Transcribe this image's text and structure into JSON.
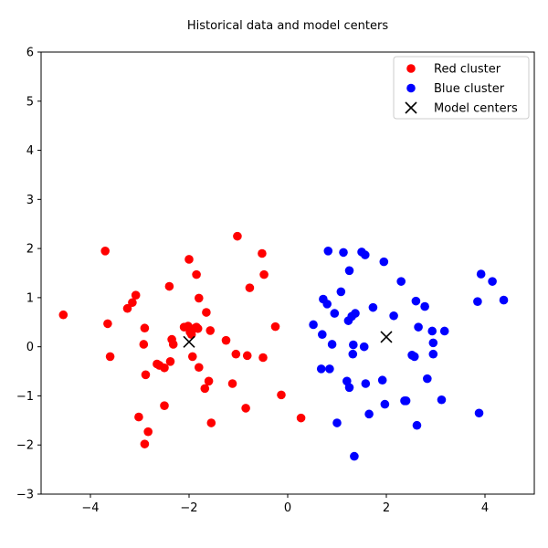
{
  "chart_data": {
    "type": "scatter",
    "title": "Historical data and model centers",
    "xlabel": "",
    "ylabel": "",
    "xlim": [
      -5,
      5
    ],
    "ylim": [
      -3,
      6
    ],
    "xticks": [
      -4,
      -2,
      0,
      2,
      4
    ],
    "yticks": [
      -3,
      -2,
      -1,
      0,
      1,
      2,
      3,
      4,
      5,
      6
    ],
    "xtick_labels": [
      "−4",
      "−2",
      "0",
      "2",
      "4"
    ],
    "ytick_labels": [
      "−3",
      "−2",
      "−1",
      "0",
      "1",
      "2",
      "3",
      "4",
      "5",
      "6"
    ],
    "grid": false,
    "legend_position": "top-right",
    "series": [
      {
        "name": "Red cluster",
        "color": "#ff0000",
        "marker": "circle",
        "points": [
          [
            -4.55,
            0.65
          ],
          [
            -3.7,
            1.95
          ],
          [
            -3.65,
            0.47
          ],
          [
            -3.6,
            -0.2
          ],
          [
            -3.25,
            0.78
          ],
          [
            -3.15,
            0.9
          ],
          [
            -3.08,
            1.05
          ],
          [
            -3.02,
            -1.43
          ],
          [
            -2.92,
            0.05
          ],
          [
            -2.9,
            0.38
          ],
          [
            -2.88,
            -0.57
          ],
          [
            -2.9,
            -1.98
          ],
          [
            -2.83,
            -1.73
          ],
          [
            -2.65,
            -0.35
          ],
          [
            -2.6,
            -0.38
          ],
          [
            -2.5,
            -0.43
          ],
          [
            -2.5,
            -1.2
          ],
          [
            -2.4,
            1.23
          ],
          [
            -2.38,
            -0.3
          ],
          [
            -2.35,
            0.15
          ],
          [
            -2.32,
            0.05
          ],
          [
            -2.1,
            0.4
          ],
          [
            -2.02,
            0.42
          ],
          [
            -2.0,
            1.78
          ],
          [
            -1.98,
            0.3
          ],
          [
            -1.95,
            0.25
          ],
          [
            -1.93,
            -0.2
          ],
          [
            -1.88,
            0.38
          ],
          [
            -1.85,
            0.4
          ],
          [
            -1.85,
            1.47
          ],
          [
            -1.82,
            0.37
          ],
          [
            -1.8,
            0.99
          ],
          [
            -1.8,
            -0.42
          ],
          [
            -1.68,
            -0.85
          ],
          [
            -1.65,
            0.7
          ],
          [
            -1.6,
            -0.7
          ],
          [
            -1.57,
            0.33
          ],
          [
            -1.55,
            -1.55
          ],
          [
            -1.25,
            0.13
          ],
          [
            -1.12,
            -0.75
          ],
          [
            -1.05,
            -0.15
          ],
          [
            -1.02,
            2.25
          ],
          [
            -0.85,
            -1.25
          ],
          [
            -0.82,
            -0.18
          ],
          [
            -0.77,
            1.2
          ],
          [
            -0.52,
            1.9
          ],
          [
            -0.5,
            -0.22
          ],
          [
            -0.48,
            1.47
          ],
          [
            -0.25,
            0.41
          ],
          [
            -0.13,
            -0.98
          ],
          [
            0.27,
            -1.45
          ]
        ]
      },
      {
        "name": "Blue cluster",
        "color": "#0000ff",
        "marker": "circle",
        "points": [
          [
            0.52,
            0.45
          ],
          [
            0.68,
            -0.45
          ],
          [
            0.7,
            0.25
          ],
          [
            0.72,
            0.97
          ],
          [
            0.8,
            0.87
          ],
          [
            0.82,
            1.95
          ],
          [
            0.85,
            -0.45
          ],
          [
            0.9,
            0.05
          ],
          [
            0.95,
            0.68
          ],
          [
            1.0,
            -1.55
          ],
          [
            1.08,
            1.12
          ],
          [
            1.13,
            1.92
          ],
          [
            1.2,
            -0.7
          ],
          [
            1.23,
            0.53
          ],
          [
            1.25,
            -0.83
          ],
          [
            1.25,
            1.55
          ],
          [
            1.3,
            0.62
          ],
          [
            1.32,
            -0.15
          ],
          [
            1.33,
            0.04
          ],
          [
            1.35,
            -2.23
          ],
          [
            1.37,
            0.68
          ],
          [
            1.5,
            1.93
          ],
          [
            1.55,
            0.0
          ],
          [
            1.57,
            1.87
          ],
          [
            1.58,
            -0.75
          ],
          [
            1.65,
            -1.37
          ],
          [
            1.73,
            0.8
          ],
          [
            1.92,
            -0.68
          ],
          [
            1.95,
            1.73
          ],
          [
            1.97,
            -1.17
          ],
          [
            2.15,
            0.63
          ],
          [
            2.3,
            1.33
          ],
          [
            2.37,
            -1.1
          ],
          [
            2.4,
            -1.1
          ],
          [
            2.52,
            -0.17
          ],
          [
            2.57,
            -0.2
          ],
          [
            2.6,
            0.93
          ],
          [
            2.62,
            -1.6
          ],
          [
            2.65,
            0.4
          ],
          [
            2.78,
            0.82
          ],
          [
            2.83,
            -0.65
          ],
          [
            2.93,
            0.32
          ],
          [
            2.95,
            -0.15
          ],
          [
            2.95,
            0.08
          ],
          [
            3.12,
            -1.08
          ],
          [
            3.18,
            0.32
          ],
          [
            3.85,
            0.92
          ],
          [
            3.88,
            -1.35
          ],
          [
            3.92,
            1.48
          ],
          [
            4.15,
            1.33
          ],
          [
            4.38,
            0.95
          ]
        ]
      },
      {
        "name": "Model centers",
        "color": "#000000",
        "marker": "x",
        "points": [
          [
            -2.0,
            0.1
          ],
          [
            2.0,
            0.2
          ]
        ]
      }
    ]
  }
}
